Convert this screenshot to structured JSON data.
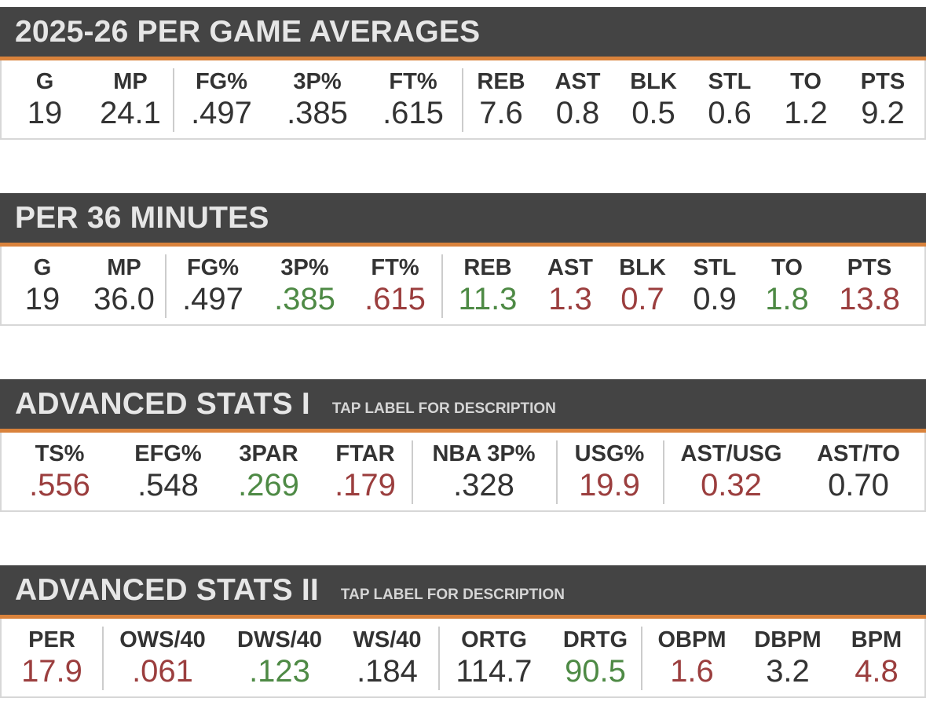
{
  "colors": {
    "header_bg": "#444444",
    "accent": "#d9823b",
    "good": "#4e8a45",
    "bad": "#9b3e3e",
    "neutral": "#333333"
  },
  "sections": [
    {
      "title": "2025-26 PER GAME AVERAGES",
      "subtitle": "",
      "groups": [
        [
          {
            "label": "G",
            "value": "19",
            "tone": "neutral"
          },
          {
            "label": "MP",
            "value": "24.1",
            "tone": "neutral"
          }
        ],
        [
          {
            "label": "FG%",
            "value": ".497",
            "tone": "neutral"
          },
          {
            "label": "3P%",
            "value": ".385",
            "tone": "neutral"
          },
          {
            "label": "FT%",
            "value": ".615",
            "tone": "neutral"
          }
        ],
        [
          {
            "label": "REB",
            "value": "7.6",
            "tone": "neutral"
          },
          {
            "label": "AST",
            "value": "0.8",
            "tone": "neutral"
          },
          {
            "label": "BLK",
            "value": "0.5",
            "tone": "neutral"
          },
          {
            "label": "STL",
            "value": "0.6",
            "tone": "neutral"
          },
          {
            "label": "TO",
            "value": "1.2",
            "tone": "neutral"
          },
          {
            "label": "PTS",
            "value": "9.2",
            "tone": "neutral"
          }
        ]
      ]
    },
    {
      "title": "PER 36 MINUTES",
      "subtitle": "",
      "groups": [
        [
          {
            "label": "G",
            "value": "19",
            "tone": "neutral"
          },
          {
            "label": "MP",
            "value": "36.0",
            "tone": "neutral"
          }
        ],
        [
          {
            "label": "FG%",
            "value": ".497",
            "tone": "neutral"
          },
          {
            "label": "3P%",
            "value": ".385",
            "tone": "good"
          },
          {
            "label": "FT%",
            "value": ".615",
            "tone": "bad"
          }
        ],
        [
          {
            "label": "REB",
            "value": "11.3",
            "tone": "good"
          },
          {
            "label": "AST",
            "value": "1.3",
            "tone": "bad"
          },
          {
            "label": "BLK",
            "value": "0.7",
            "tone": "bad"
          },
          {
            "label": "STL",
            "value": "0.9",
            "tone": "neutral"
          },
          {
            "label": "TO",
            "value": "1.8",
            "tone": "good"
          },
          {
            "label": "PTS",
            "value": "13.8",
            "tone": "bad"
          }
        ]
      ]
    },
    {
      "title": "ADVANCED STATS I",
      "subtitle": "TAP LABEL FOR DESCRIPTION",
      "groups": [
        [
          {
            "label": "TS%",
            "value": ".556",
            "tone": "bad"
          },
          {
            "label": "EFG%",
            "value": ".548",
            "tone": "neutral"
          },
          {
            "label": "3PAR",
            "value": ".269",
            "tone": "good"
          },
          {
            "label": "FTAR",
            "value": ".179",
            "tone": "bad"
          }
        ],
        [
          {
            "label": "NBA 3P%",
            "value": ".328",
            "tone": "neutral"
          }
        ],
        [
          {
            "label": "USG%",
            "value": "19.9",
            "tone": "bad"
          }
        ],
        [
          {
            "label": "AST/USG",
            "value": "0.32",
            "tone": "bad"
          },
          {
            "label": "AST/TO",
            "value": "0.70",
            "tone": "neutral"
          }
        ]
      ]
    },
    {
      "title": "ADVANCED STATS II",
      "subtitle": "TAP LABEL FOR DESCRIPTION",
      "groups": [
        [
          {
            "label": "PER",
            "value": "17.9",
            "tone": "bad"
          }
        ],
        [
          {
            "label": "OWS/40",
            "value": ".061",
            "tone": "bad"
          },
          {
            "label": "DWS/40",
            "value": ".123",
            "tone": "good"
          },
          {
            "label": "WS/40",
            "value": ".184",
            "tone": "neutral"
          }
        ],
        [
          {
            "label": "ORTG",
            "value": "114.7",
            "tone": "neutral"
          },
          {
            "label": "DRTG",
            "value": "90.5",
            "tone": "good"
          }
        ],
        [
          {
            "label": "OBPM",
            "value": "1.6",
            "tone": "bad"
          },
          {
            "label": "DBPM",
            "value": "3.2",
            "tone": "neutral"
          },
          {
            "label": "BPM",
            "value": "4.8",
            "tone": "bad"
          }
        ]
      ]
    }
  ]
}
